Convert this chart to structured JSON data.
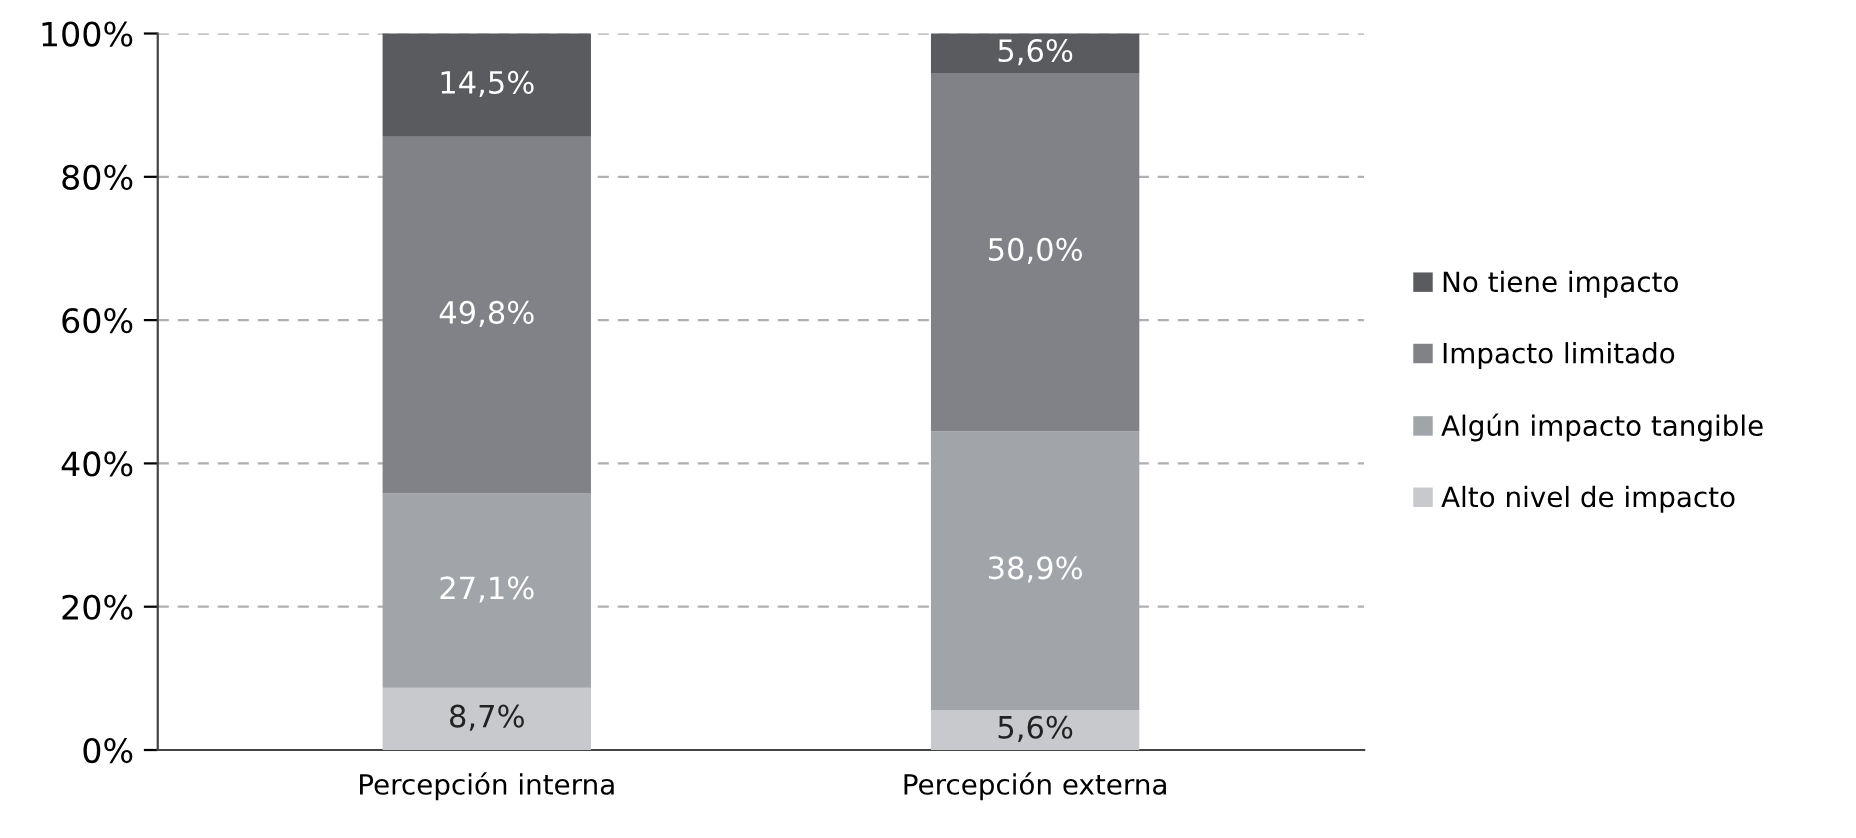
{
  "chart_data": {
    "type": "bar",
    "stacked": true,
    "categories": [
      "Percepción interna",
      "Percepción externa"
    ],
    "series": [
      {
        "name": "Alto nivel de impacto",
        "color": "#c8c9cc",
        "values": [
          8.7,
          5.6
        ],
        "value_labels": [
          "8,7%",
          "5,6%"
        ]
      },
      {
        "name": "Algún impacto tangible",
        "color": "#a1a4a9",
        "values": [
          27.1,
          38.9
        ],
        "value_labels": [
          "27,1%",
          "38,9%"
        ]
      },
      {
        "name": "Impacto limitado",
        "color": "#808287",
        "values": [
          49.8,
          50.0
        ],
        "value_labels": [
          "49,8%",
          "50,0%"
        ]
      },
      {
        "name": "No tiene impacto",
        "color": "#5a5b5e",
        "values": [
          14.5,
          5.6
        ],
        "value_labels": [
          "14,5%",
          "5,6%"
        ]
      }
    ],
    "ylim": [
      0,
      100
    ],
    "yticks": [
      {
        "value": 0,
        "label": "0%"
      },
      {
        "value": 20,
        "label": "20%"
      },
      {
        "value": 40,
        "label": "40%"
      },
      {
        "value": 60,
        "label": "60%"
      },
      {
        "value": 80,
        "label": "80%"
      },
      {
        "value": 100,
        "label": "100%"
      }
    ],
    "grid": "y",
    "legend": "right"
  }
}
